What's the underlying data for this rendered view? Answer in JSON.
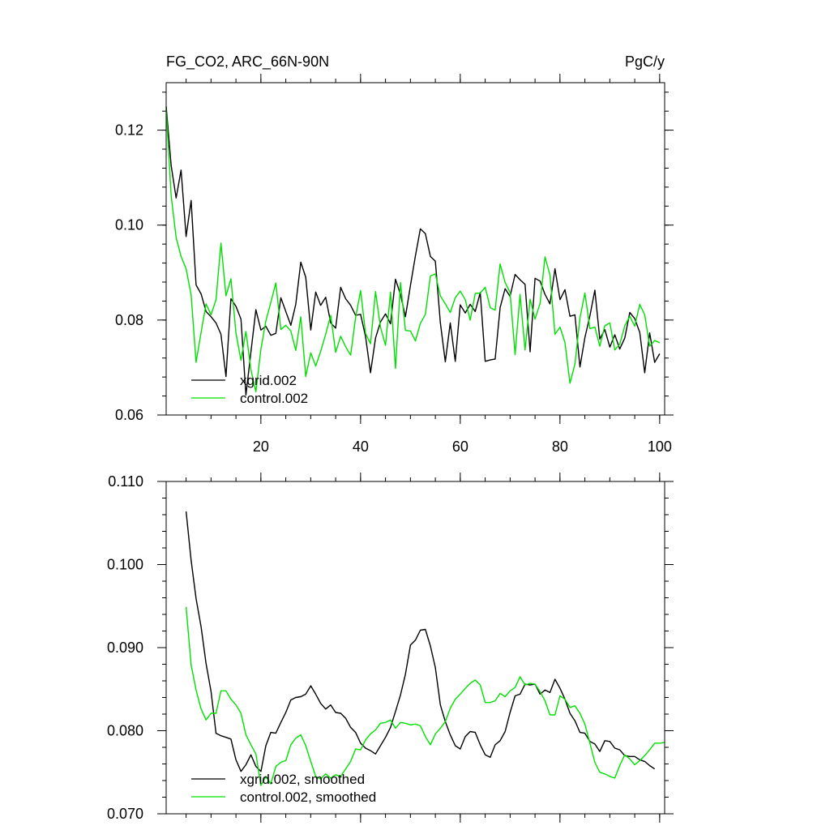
{
  "chart_data": [
    {
      "type": "line",
      "title": "FG_CO2, ARC_66N-90N",
      "units": "PgC/y",
      "xlim": [
        1,
        101
      ],
      "ylim": [
        0.06,
        0.13
      ],
      "x_ticks": [
        20,
        40,
        60,
        80,
        100
      ],
      "y_ticks": [
        0.06,
        0.08,
        0.1,
        0.12
      ],
      "y_tick_labels": [
        "0.06",
        "0.08",
        "0.10",
        "0.12"
      ],
      "legend_position": "bottom-left",
      "series": [
        {
          "name": "xgrid.002",
          "color": "#000000",
          "x_start": 1,
          "values": [
            0.125,
            0.1125,
            0.1057,
            0.1116,
            0.0976,
            0.1052,
            0.0874,
            0.0855,
            0.0818,
            0.0807,
            0.0794,
            0.077,
            0.0681,
            0.0845,
            0.0829,
            0.0802,
            0.0642,
            0.0733,
            0.0822,
            0.0779,
            0.0787,
            0.0768,
            0.0772,
            0.0847,
            0.0818,
            0.0789,
            0.0833,
            0.0922,
            0.089,
            0.0779,
            0.0859,
            0.0831,
            0.0848,
            0.0794,
            0.0783,
            0.0869,
            0.0845,
            0.0831,
            0.081,
            0.0812,
            0.0765,
            0.0689,
            0.0762,
            0.0796,
            0.0813,
            0.0792,
            0.0886,
            0.0854,
            0.0807,
            0.0873,
            0.0935,
            0.0992,
            0.0982,
            0.0934,
            0.0924,
            0.0794,
            0.0712,
            0.0794,
            0.0713,
            0.0832,
            0.0815,
            0.0833,
            0.0818,
            0.0858,
            0.0713,
            0.0716,
            0.0718,
            0.0826,
            0.0866,
            0.085,
            0.0896,
            0.0885,
            0.0875,
            0.0733,
            0.0888,
            0.0882,
            0.0854,
            0.0834,
            0.0908,
            0.0843,
            0.0864,
            0.0808,
            0.0811,
            0.0701,
            0.0763,
            0.0809,
            0.0863,
            0.076,
            0.078,
            0.0743,
            0.0769,
            0.0739,
            0.0762,
            0.0816,
            0.0803,
            0.0774,
            0.0689,
            0.0773,
            0.0711,
            0.0729
          ]
        },
        {
          "name": "control.002",
          "color": "#00e000",
          "x_start": 1,
          "values": [
            0.1245,
            0.1061,
            0.0974,
            0.0934,
            0.0908,
            0.0853,
            0.0711,
            0.0774,
            0.0834,
            0.0811,
            0.0843,
            0.0962,
            0.0851,
            0.0887,
            0.0773,
            0.0715,
            0.0776,
            0.0695,
            0.0649,
            0.0739,
            0.0798,
            0.0837,
            0.0878,
            0.078,
            0.0789,
            0.0777,
            0.0736,
            0.0807,
            0.0681,
            0.0731,
            0.0703,
            0.0734,
            0.077,
            0.081,
            0.0732,
            0.0766,
            0.0744,
            0.0726,
            0.0805,
            0.0862,
            0.0772,
            0.075,
            0.086,
            0.0785,
            0.0747,
            0.0859,
            0.0698,
            0.0879,
            0.0778,
            0.0777,
            0.0756,
            0.0793,
            0.0812,
            0.0893,
            0.0897,
            0.0851,
            0.0834,
            0.0816,
            0.0847,
            0.0861,
            0.0843,
            0.08,
            0.0856,
            0.0857,
            0.0869,
            0.0826,
            0.0821,
            0.0918,
            0.0879,
            0.0858,
            0.0727,
            0.0854,
            0.0737,
            0.0844,
            0.0802,
            0.0835,
            0.0933,
            0.0895,
            0.077,
            0.0785,
            0.0753,
            0.0667,
            0.0707,
            0.0804,
            0.0857,
            0.0782,
            0.0785,
            0.0745,
            0.0788,
            0.0794,
            0.0737,
            0.0749,
            0.0788,
            0.0808,
            0.0787,
            0.0833,
            0.0811,
            0.0745,
            0.0757,
            0.0752
          ]
        }
      ]
    },
    {
      "type": "line",
      "xlim": [
        1,
        101
      ],
      "ylim": [
        0.07,
        0.11
      ],
      "x_ticks": [
        20,
        40,
        60,
        80,
        100
      ],
      "y_ticks": [
        0.07,
        0.08,
        0.09,
        0.1,
        0.11
      ],
      "y_tick_labels": [
        "0.070",
        "0.080",
        "0.090",
        "0.100",
        "0.110"
      ],
      "legend_position": "bottom-left",
      "series": [
        {
          "name": "xgrid.002, smoothed",
          "color": "#000000",
          "x_start": 5,
          "values": [
            0.1064,
            0.1005,
            0.0959,
            0.0925,
            0.0881,
            0.0847,
            0.0797,
            0.0794,
            0.0792,
            0.079,
            0.0765,
            0.0751,
            0.0759,
            0.0771,
            0.0757,
            0.0751,
            0.0782,
            0.0798,
            0.0797,
            0.081,
            0.0822,
            0.0837,
            0.084,
            0.0841,
            0.0844,
            0.0854,
            0.0844,
            0.0833,
            0.0826,
            0.0831,
            0.0822,
            0.0821,
            0.0815,
            0.0804,
            0.0798,
            0.0785,
            0.0779,
            0.0776,
            0.0772,
            0.0782,
            0.0792,
            0.0804,
            0.0823,
            0.0843,
            0.0868,
            0.0903,
            0.0909,
            0.0921,
            0.0922,
            0.0902,
            0.0876,
            0.0831,
            0.0811,
            0.0795,
            0.0782,
            0.0778,
            0.0793,
            0.0799,
            0.0798,
            0.0783,
            0.0771,
            0.0768,
            0.0783,
            0.0788,
            0.0799,
            0.0822,
            0.0842,
            0.0844,
            0.0856,
            0.0855,
            0.0856,
            0.0844,
            0.0849,
            0.0846,
            0.0862,
            0.0851,
            0.0838,
            0.0821,
            0.0812,
            0.0798,
            0.0797,
            0.0787,
            0.0784,
            0.0775,
            0.0788,
            0.0787,
            0.0779,
            0.0777,
            0.077,
            0.0769,
            0.0769,
            0.0765,
            0.0763,
            0.0758,
            0.0754
          ]
        },
        {
          "name": "control.002, smoothed",
          "color": "#00e000",
          "x_start": 5,
          "values": [
            0.0949,
            0.0879,
            0.0849,
            0.0826,
            0.0813,
            0.0821,
            0.0821,
            0.0848,
            0.0848,
            0.0838,
            0.0831,
            0.0821,
            0.0795,
            0.0783,
            0.0772,
            0.0734,
            0.0745,
            0.0736,
            0.0757,
            0.0762,
            0.0764,
            0.0783,
            0.0791,
            0.0795,
            0.0782,
            0.0763,
            0.0745,
            0.0742,
            0.0748,
            0.0743,
            0.0747,
            0.0745,
            0.0754,
            0.0763,
            0.0778,
            0.0777,
            0.0789,
            0.0796,
            0.0801,
            0.0809,
            0.081,
            0.0813,
            0.0803,
            0.081,
            0.0809,
            0.0807,
            0.0808,
            0.0806,
            0.0793,
            0.0783,
            0.0796,
            0.0803,
            0.0811,
            0.0827,
            0.0838,
            0.0844,
            0.0851,
            0.0857,
            0.0861,
            0.0855,
            0.0834,
            0.0834,
            0.0836,
            0.0845,
            0.0841,
            0.0848,
            0.0852,
            0.0865,
            0.0855,
            0.0857,
            0.0856,
            0.0847,
            0.0836,
            0.0819,
            0.0819,
            0.0842,
            0.0838,
            0.0828,
            0.083,
            0.0821,
            0.0808,
            0.0785,
            0.0762,
            0.075,
            0.0748,
            0.0745,
            0.0743,
            0.0758,
            0.0771,
            0.0766,
            0.0759,
            0.0764,
            0.077,
            0.0777,
            0.0785,
            0.0785,
            0.0786
          ]
        }
      ]
    }
  ]
}
